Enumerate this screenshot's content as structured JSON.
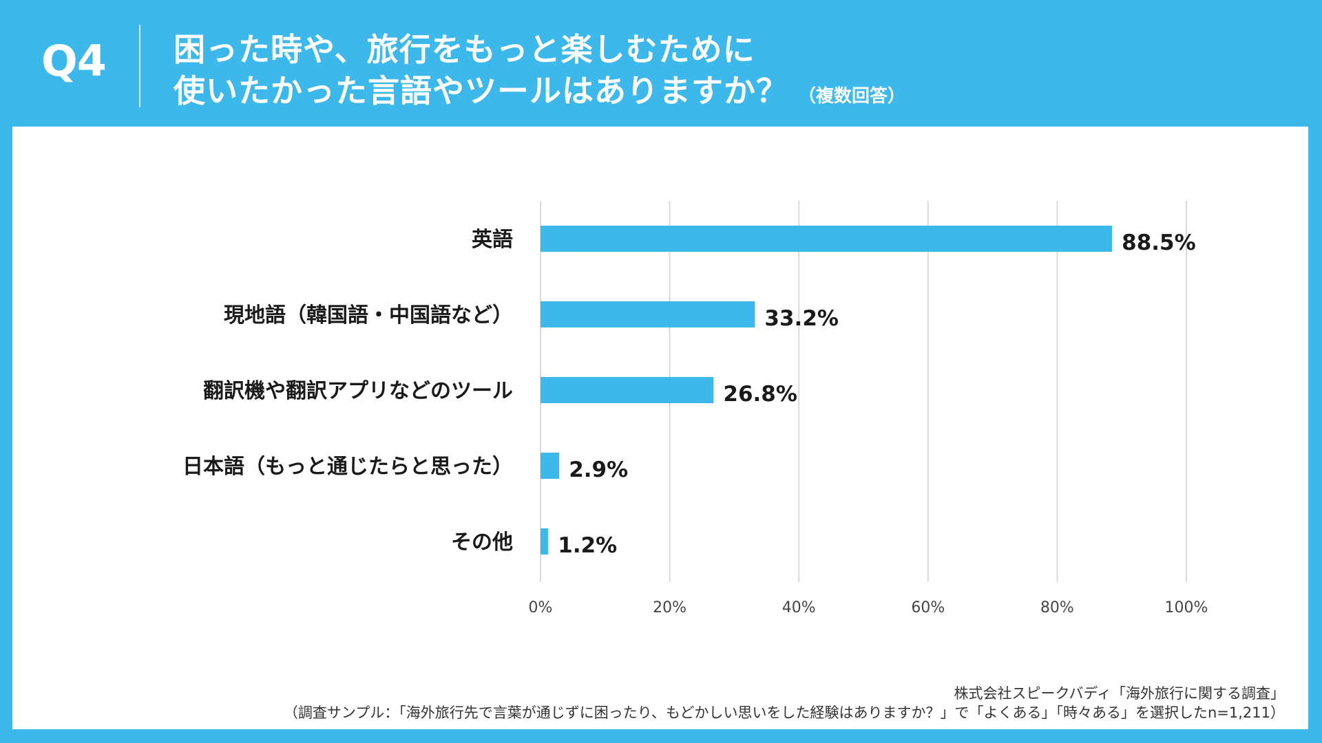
{
  "header": {
    "question_label": "Q4",
    "title_line1": "困った時や、旅行をもっと楽しむために",
    "title_line2": "使いたかった言語やツールはありますか？",
    "title_note": "（複数回答）"
  },
  "colors": {
    "background": "#3db8eb",
    "bar": "#3db8eb",
    "grid": "#d9d9d9"
  },
  "chart_data": {
    "type": "bar",
    "orientation": "horizontal",
    "title": "困った時や、旅行をもっと楽しむために使いたかった言語やツールはありますか？（複数回答）",
    "categories": [
      "英語",
      "現地語（韓国語・中国語など）",
      "翻訳機や翻訳アプリなどのツール",
      "日本語（もっと通じたらと思った）",
      "その他"
    ],
    "values": [
      88.5,
      33.2,
      26.8,
      2.9,
      1.2
    ],
    "value_labels": [
      "88.5%",
      "33.2%",
      "26.8%",
      "2.9%",
      "1.2%"
    ],
    "xlim": [
      0,
      100
    ],
    "xticks": [
      0,
      20,
      40,
      60,
      80,
      100
    ],
    "xtick_labels": [
      "0%",
      "20%",
      "40%",
      "60%",
      "80%",
      "100%"
    ],
    "grid": true,
    "legend": "none"
  },
  "source": {
    "line1": "株式会社スピークバディ「海外旅行に関する調査」",
    "line2": "（調査サンプル：「海外旅行先で言葉が通じずに困ったり、もどかしい思いをした経験はありますか？」で「よくある」「時々ある」を選択したn=1,211）"
  }
}
